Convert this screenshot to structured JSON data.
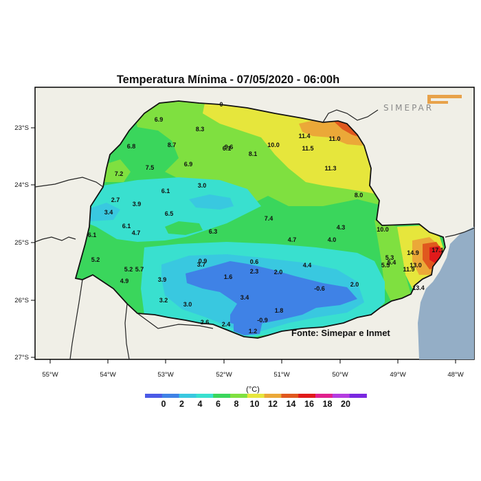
{
  "title": "Temperatura Mínima - 07/05/2020 - 06:00h",
  "source": "Fonte: Simepar e Inmet",
  "logo_text": "SIMEPAR",
  "unit_label": "(°C)",
  "lon_ticks": [
    "55°W",
    "54°W",
    "53°W",
    "52°W",
    "51°W",
    "50°W",
    "49°W",
    "48°W"
  ],
  "lat_ticks": [
    "23°S",
    "24°S",
    "25°S",
    "26°S",
    "27°S"
  ],
  "colorbar": {
    "labels": [
      "0",
      "2",
      "4",
      "6",
      "8",
      "10",
      "12",
      "14",
      "16",
      "18",
      "20"
    ],
    "colors": [
      "#4b5ae6",
      "#3f82e6",
      "#39c8e0",
      "#39e0cf",
      "#3ad65c",
      "#7fe040",
      "#e6e63c",
      "#eba838",
      "#e0581e",
      "#e01a1a",
      "#e0208c",
      "#b43ce0",
      "#7a28e0"
    ]
  },
  "stations": [
    {
      "v": "6.9"
    },
    {
      "v": "8.3"
    },
    {
      "v": "0"
    },
    {
      "v": "6.8"
    },
    {
      "v": "8.7"
    },
    {
      "v": "6.1"
    },
    {
      "v": "9.6"
    },
    {
      "v": "8.1"
    },
    {
      "v": "10.0"
    },
    {
      "v": "11.4"
    },
    {
      "v": "11.0"
    },
    {
      "v": "11.5"
    },
    {
      "v": "6.9"
    },
    {
      "v": "7.5"
    },
    {
      "v": "7.2"
    },
    {
      "v": "11.3"
    },
    {
      "v": "6.1"
    },
    {
      "v": "3.0"
    },
    {
      "v": "8.0"
    },
    {
      "v": "2.7"
    },
    {
      "v": "3.9"
    },
    {
      "v": "3.4"
    },
    {
      "v": "6.5"
    },
    {
      "v": "7.4"
    },
    {
      "v": "6.1"
    },
    {
      "v": "4.7"
    },
    {
      "v": "6.3"
    },
    {
      "v": "4.3"
    },
    {
      "v": "10.0"
    },
    {
      "v": "6.1"
    },
    {
      "v": "4.7"
    },
    {
      "v": "4.0"
    },
    {
      "v": "14.9"
    },
    {
      "v": "17.1"
    },
    {
      "v": "5.2"
    },
    {
      "v": "0.9"
    },
    {
      "v": "0.6"
    },
    {
      "v": "5.3"
    },
    {
      "v": "5.2"
    },
    {
      "v": "5.7"
    },
    {
      "v": "3.7"
    },
    {
      "v": "4.4"
    },
    {
      "v": "5.4"
    },
    {
      "v": "5.5"
    },
    {
      "v": "2.3"
    },
    {
      "v": "2.0"
    },
    {
      "v": "13.0"
    },
    {
      "v": "11.9"
    },
    {
      "v": "4.9"
    },
    {
      "v": "3.9"
    },
    {
      "v": "1.6"
    },
    {
      "v": "-0.6"
    },
    {
      "v": "2.0"
    },
    {
      "v": "13.4"
    },
    {
      "v": "3.2"
    },
    {
      "v": "3.0"
    },
    {
      "v": "3.4"
    },
    {
      "v": "1.8"
    },
    {
      "v": "2.6"
    },
    {
      "v": "2.4"
    },
    {
      "v": "-0.9"
    },
    {
      "v": "1.2"
    }
  ]
}
